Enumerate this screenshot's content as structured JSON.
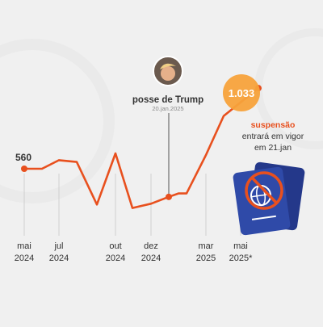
{
  "colors": {
    "background": "#f0f0f0",
    "line": "#e8501e",
    "accent_bubble": "#f7a23b",
    "text": "#333333",
    "muted": "#8a8a8a",
    "passport": "#2f4aa8",
    "passport_dark": "#24388a",
    "ban": "#e8501e"
  },
  "chart_data": {
    "type": "line",
    "ylabel": "",
    "xlabel": "",
    "series": [
      {
        "name": "",
        "x": [
          "2024-04",
          "2024-05",
          "2024-06",
          "2024-07",
          "2024-08",
          "2024-09",
          "2024-10",
          "2024-11",
          "2024-12",
          "2024-12b",
          "2025-01",
          "2025-02",
          "2025-03",
          "2025-04",
          "2025-05"
        ],
        "values": [
          560,
          560,
          610,
          600,
          350,
          650,
          330,
          355,
          395,
          415,
          415,
          640,
          870,
          950,
          1033
        ]
      }
    ],
    "ylim": [
      200,
      1100
    ],
    "x_ticks": [
      {
        "month": "mai",
        "year": "2024"
      },
      {
        "month": "jul",
        "year": "2024"
      },
      {
        "month": "out",
        "year": "2024"
      },
      {
        "month": "dez",
        "year": "2024"
      },
      {
        "month": "mar",
        "year": "2025"
      },
      {
        "month": "mai",
        "year": "2025*"
      }
    ],
    "start_label": "560",
    "end_label": "1.033",
    "annotations": {
      "trump": {
        "title": "posse de Trump",
        "date": "20.jan.2025",
        "icon": "trump-photo"
      },
      "suspension": {
        "highlight": "suspensão",
        "line2": "entrará em vigor",
        "line3": "em 21.jan",
        "icon": "banned-passport"
      }
    },
    "grid": false
  }
}
